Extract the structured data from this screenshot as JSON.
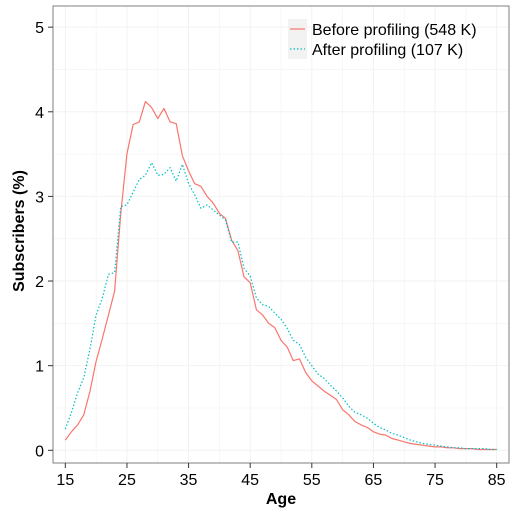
{
  "chart_data": {
    "type": "line",
    "title": "",
    "xlabel": "Age",
    "ylabel": "Subscribers (%)",
    "xlim": [
      13,
      87
    ],
    "ylim": [
      -0.15,
      5.25
    ],
    "xticks": [
      15,
      25,
      35,
      45,
      55,
      65,
      75,
      85
    ],
    "yticks": [
      0,
      1,
      2,
      3,
      4,
      5
    ],
    "grid": true,
    "legend_position": "top-right",
    "colors": {
      "before": "#F8766D",
      "after": "#00BFC4",
      "grid": "#f2f2f2",
      "frame": "#7f7f7f"
    },
    "series": [
      {
        "name": "Before profiling (548 K)",
        "style": "solid",
        "x": [
          15,
          16,
          17,
          18,
          19,
          20,
          21,
          22,
          23,
          24,
          25,
          26,
          27,
          28,
          29,
          30,
          31,
          32,
          33,
          34,
          35,
          36,
          37,
          38,
          39,
          40,
          41,
          42,
          43,
          44,
          45,
          46,
          47,
          48,
          49,
          50,
          51,
          52,
          53,
          54,
          55,
          56,
          57,
          58,
          59,
          60,
          61,
          62,
          63,
          64,
          65,
          66,
          67,
          68,
          69,
          70,
          71,
          72,
          73,
          74,
          75,
          76,
          77,
          78,
          79,
          80,
          81,
          82,
          83,
          84,
          85
        ],
        "values": [
          0.12,
          0.22,
          0.3,
          0.42,
          0.7,
          1.05,
          1.32,
          1.6,
          1.88,
          2.8,
          3.5,
          3.85,
          3.88,
          4.12,
          4.05,
          3.92,
          4.04,
          3.88,
          3.86,
          3.48,
          3.3,
          3.15,
          3.12,
          3.0,
          2.92,
          2.8,
          2.74,
          2.48,
          2.36,
          2.05,
          1.98,
          1.66,
          1.6,
          1.5,
          1.45,
          1.3,
          1.22,
          1.06,
          1.08,
          0.92,
          0.82,
          0.76,
          0.7,
          0.65,
          0.6,
          0.48,
          0.42,
          0.34,
          0.3,
          0.27,
          0.22,
          0.19,
          0.18,
          0.14,
          0.12,
          0.1,
          0.08,
          0.07,
          0.06,
          0.05,
          0.04,
          0.04,
          0.03,
          0.03,
          0.02,
          0.02,
          0.02,
          0.01,
          0.01,
          0.01,
          0.01
        ]
      },
      {
        "name": "After profiling (107 K)",
        "style": "dotted",
        "x": [
          15,
          16,
          17,
          18,
          19,
          20,
          21,
          22,
          23,
          24,
          25,
          26,
          27,
          28,
          29,
          30,
          31,
          32,
          33,
          34,
          35,
          36,
          37,
          38,
          39,
          40,
          41,
          42,
          43,
          44,
          45,
          46,
          47,
          48,
          49,
          50,
          51,
          52,
          53,
          54,
          55,
          56,
          57,
          58,
          59,
          60,
          61,
          62,
          63,
          64,
          65,
          66,
          67,
          68,
          69,
          70,
          71,
          72,
          73,
          74,
          75,
          76,
          77,
          78,
          79,
          80,
          81,
          82,
          83,
          84,
          85
        ],
        "values": [
          0.25,
          0.45,
          0.68,
          0.86,
          1.2,
          1.6,
          1.8,
          2.08,
          2.1,
          2.88,
          2.9,
          3.05,
          3.2,
          3.25,
          3.4,
          3.25,
          3.26,
          3.34,
          3.18,
          3.38,
          3.15,
          3.02,
          2.86,
          2.9,
          2.84,
          2.78,
          2.72,
          2.46,
          2.46,
          2.15,
          2.06,
          1.8,
          1.72,
          1.7,
          1.62,
          1.55,
          1.44,
          1.3,
          1.25,
          1.1,
          1.0,
          0.9,
          0.85,
          0.77,
          0.7,
          0.62,
          0.52,
          0.45,
          0.42,
          0.38,
          0.32,
          0.27,
          0.24,
          0.2,
          0.18,
          0.15,
          0.12,
          0.1,
          0.08,
          0.07,
          0.06,
          0.05,
          0.04,
          0.03,
          0.03,
          0.02,
          0.02,
          0.02,
          0.02,
          0.01,
          0.01
        ]
      }
    ]
  }
}
